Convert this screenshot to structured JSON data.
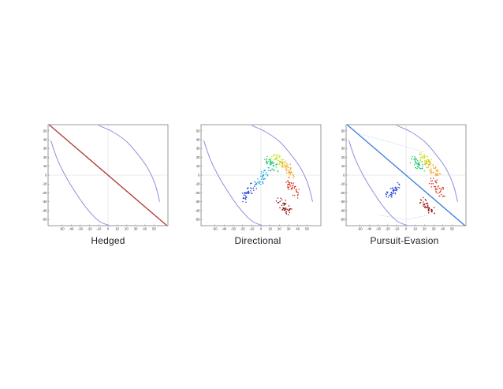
{
  "chart_data": [
    {
      "type": "scatter",
      "caption": "Hedged",
      "xlim": [
        -65,
        65
      ],
      "ylim": [
        -57,
        57
      ],
      "xticks": [
        -50,
        -40,
        -30,
        -20,
        -10,
        0,
        10,
        20,
        30,
        40,
        50
      ],
      "yticks": [
        -50,
        -40,
        -30,
        -20,
        -10,
        0,
        10,
        20,
        30,
        40,
        50
      ],
      "grid": false,
      "series": [
        {
          "color": "#8f8fdc",
          "style": "dotted-curve",
          "x": [
            -62,
            -55,
            -45,
            -35,
            -25,
            -15,
            -8,
            2
          ],
          "y": [
            39,
            18,
            -3,
            -20,
            -35,
            -47,
            -53,
            -57
          ]
        },
        {
          "color": "#8f8fdc",
          "style": "dotted-curve",
          "x": [
            -10,
            5,
            20,
            32,
            43,
            51,
            56
          ],
          "y": [
            56,
            49,
            38,
            24,
            8,
            -10,
            -30
          ]
        },
        {
          "color": "#b0413e",
          "style": "line",
          "x": [
            -64,
            64
          ],
          "y": [
            57,
            -57
          ]
        }
      ]
    },
    {
      "type": "scatter",
      "caption": "Directional",
      "xlim": [
        -65,
        65
      ],
      "ylim": [
        -57,
        57
      ],
      "xticks": [
        -50,
        -40,
        -30,
        -20,
        -10,
        0,
        10,
        20,
        30,
        40,
        50
      ],
      "yticks": [
        -50,
        -40,
        -30,
        -20,
        -10,
        0,
        10,
        20,
        30,
        40,
        50
      ],
      "grid": false,
      "series": [
        {
          "color": "#8f8fdc",
          "style": "dotted-curve",
          "x": [
            -62,
            -55,
            -45,
            -35,
            -25,
            -15,
            -8,
            2
          ],
          "y": [
            39,
            18,
            -3,
            -20,
            -35,
            -47,
            -53,
            -57
          ]
        },
        {
          "color": "#8f8fdc",
          "style": "dotted-curve",
          "x": [
            -10,
            5,
            20,
            32,
            43,
            51,
            56
          ],
          "y": [
            56,
            49,
            38,
            24,
            8,
            -10,
            -30
          ]
        },
        {
          "color": "#1f3fd6",
          "style": "cluster",
          "x": [
            -20,
            -13,
            -8
          ],
          "y": [
            -27,
            -20,
            -12
          ]
        },
        {
          "color": "#1aa3e0",
          "style": "cluster",
          "x": [
            -4,
            2,
            8
          ],
          "y": [
            -10,
            -2,
            5
          ]
        },
        {
          "color": "#1ec86a",
          "style": "cluster",
          "x": [
            6,
            12,
            16
          ],
          "y": [
            18,
            12,
            6
          ]
        },
        {
          "color": "#c8e21e",
          "style": "cluster",
          "x": [
            14,
            20,
            24
          ],
          "y": [
            22,
            17,
            12
          ]
        },
        {
          "color": "#f4a11a",
          "style": "cluster",
          "x": [
            24,
            30,
            34
          ],
          "y": [
            14,
            6,
            0
          ]
        },
        {
          "color": "#d6311c",
          "style": "cluster",
          "x": [
            28,
            34,
            40
          ],
          "y": [
            -6,
            -14,
            -22
          ]
        },
        {
          "color": "#8c0d0d",
          "style": "cluster",
          "x": [
            20,
            26,
            30
          ],
          "y": [
            -28,
            -36,
            -42
          ]
        }
      ]
    },
    {
      "type": "scatter",
      "caption": "Pursuit-Evasion",
      "xlim": [
        -65,
        65
      ],
      "ylim": [
        -57,
        57
      ],
      "xticks": [
        -50,
        -40,
        -30,
        -20,
        -10,
        0,
        10,
        20,
        30,
        40,
        50
      ],
      "yticks": [
        -50,
        -40,
        -30,
        -20,
        -10,
        0,
        10,
        20,
        30,
        40,
        50
      ],
      "grid": false,
      "series": [
        {
          "color": "#8f8fdc",
          "style": "dotted-curve",
          "x": [
            -62,
            -55,
            -45,
            -35,
            -25,
            -15,
            -8,
            2
          ],
          "y": [
            39,
            18,
            -3,
            -20,
            -35,
            -47,
            -53,
            -57
          ]
        },
        {
          "color": "#8f8fdc",
          "style": "dotted-curve",
          "x": [
            -10,
            5,
            20,
            32,
            43,
            51,
            56
          ],
          "y": [
            56,
            49,
            38,
            24,
            8,
            -10,
            -30
          ]
        },
        {
          "color": "#3f7fe0",
          "style": "line",
          "x": [
            -64,
            64
          ],
          "y": [
            57,
            -57
          ]
        },
        {
          "color": "#9bbbe8",
          "style": "dashed",
          "x": [
            -55,
            -20,
            20
          ],
          "y": [
            48,
            38,
            26
          ]
        },
        {
          "color": "#9bbbe8",
          "style": "dashed",
          "x": [
            -30,
            0,
            25
          ],
          "y": [
            -45,
            -50,
            -45
          ]
        },
        {
          "color": "#1f3fd6",
          "style": "cluster",
          "x": [
            -20,
            -14,
            -10
          ],
          "y": [
            -25,
            -18,
            -12
          ]
        },
        {
          "color": "#1ec86a",
          "style": "cluster",
          "x": [
            8,
            13,
            18
          ],
          "y": [
            18,
            12,
            8
          ]
        },
        {
          "color": "#c8e21e",
          "style": "cluster",
          "x": [
            16,
            22,
            26
          ],
          "y": [
            22,
            17,
            12
          ]
        },
        {
          "color": "#f4a11a",
          "style": "cluster",
          "x": [
            24,
            30,
            34
          ],
          "y": [
            14,
            6,
            0
          ]
        },
        {
          "color": "#d6311c",
          "style": "cluster",
          "x": [
            28,
            34,
            40
          ],
          "y": [
            -6,
            -14,
            -22
          ]
        },
        {
          "color": "#8c0d0d",
          "style": "cluster",
          "x": [
            18,
            24,
            30
          ],
          "y": [
            -28,
            -36,
            -42
          ]
        }
      ]
    }
  ]
}
